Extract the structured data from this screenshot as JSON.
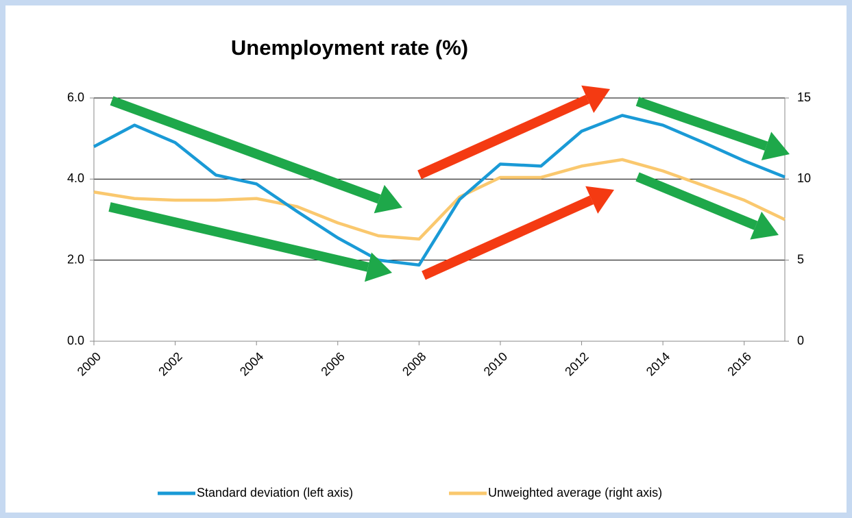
{
  "chart_data": {
    "type": "line",
    "title": "Unemployment rate (%)",
    "x": [
      2000,
      2001,
      2002,
      2003,
      2004,
      2005,
      2006,
      2007,
      2008,
      2009,
      2010,
      2011,
      2012,
      2013,
      2014,
      2015,
      2016,
      2017
    ],
    "series": [
      {
        "name": "Standard deviation (left axis)",
        "color": "#1a9ad6",
        "axis": "y",
        "values": [
          4.8,
          5.33,
          4.9,
          4.1,
          3.88,
          3.2,
          2.55,
          2.0,
          1.88,
          3.5,
          4.37,
          4.32,
          5.18,
          5.57,
          5.33,
          4.9,
          4.45,
          4.05
        ]
      },
      {
        "name": "Unweighted average (right axis)",
        "color": "#fac86e",
        "axis": "y2",
        "values": [
          9.2,
          8.8,
          8.7,
          8.7,
          8.8,
          8.3,
          7.3,
          6.5,
          6.3,
          8.9,
          10.1,
          10.1,
          10.8,
          11.2,
          10.5,
          9.6,
          8.7,
          7.5
        ]
      }
    ],
    "xlim": [
      2000,
      2017
    ],
    "xticks": [
      2000,
      2002,
      2004,
      2006,
      2008,
      2010,
      2012,
      2014,
      2016
    ],
    "ylim": [
      0,
      6
    ],
    "yticks": [
      {
        "value": 0,
        "label": "0.0"
      },
      {
        "value": 2,
        "label": "2.0"
      },
      {
        "value": 4,
        "label": "4.0"
      },
      {
        "value": 6,
        "label": "6.0"
      }
    ],
    "y2lim": [
      0,
      15
    ],
    "y2ticks": [
      0,
      5,
      10,
      15
    ],
    "grid": true,
    "legend": "bottom"
  }
}
